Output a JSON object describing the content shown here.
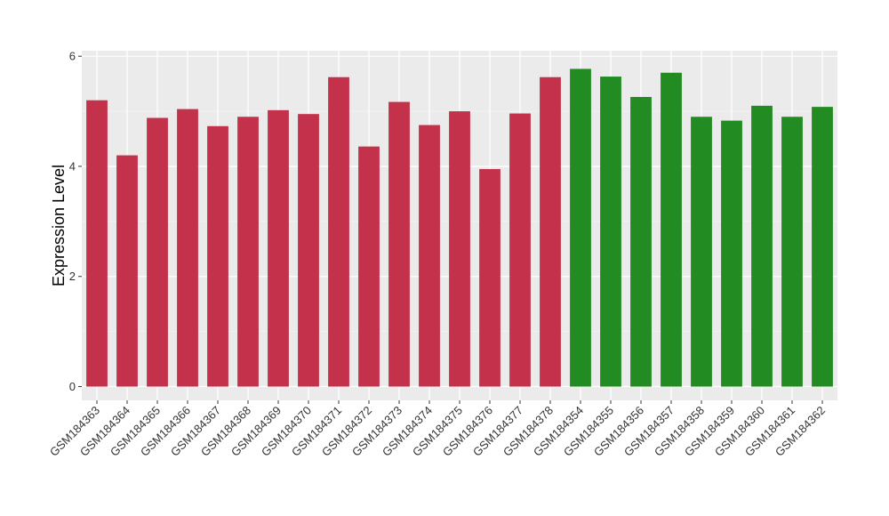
{
  "chart_data": {
    "type": "bar",
    "title": "",
    "xlabel": "",
    "ylabel": "Expression Level",
    "ylim": [
      -0.25,
      6.1
    ],
    "yticks": [
      0,
      2,
      4,
      6
    ],
    "grid": true,
    "legend": "none",
    "panel_background": "#EBEBEB",
    "categories": [
      "GSM184363",
      "GSM184364",
      "GSM184365",
      "GSM184366",
      "GSM184367",
      "GSM184368",
      "GSM184369",
      "GSM184370",
      "GSM184371",
      "GSM184372",
      "GSM184373",
      "GSM184374",
      "GSM184375",
      "GSM184376",
      "GSM184377",
      "GSM184378",
      "GSM184354",
      "GSM184355",
      "GSM184356",
      "GSM184357",
      "GSM184358",
      "GSM184359",
      "GSM184360",
      "GSM184361",
      "GSM184362"
    ],
    "values": [
      5.2,
      4.2,
      4.88,
      5.04,
      4.73,
      4.9,
      5.02,
      4.95,
      5.62,
      4.36,
      5.17,
      4.75,
      5.0,
      3.95,
      4.96,
      5.62,
      5.77,
      5.63,
      5.26,
      5.7,
      4.9,
      4.83,
      5.1,
      4.9,
      5.08
    ],
    "group_colors": [
      "#C3314A",
      "#C3314A",
      "#C3314A",
      "#C3314A",
      "#C3314A",
      "#C3314A",
      "#C3314A",
      "#C3314A",
      "#C3314A",
      "#C3314A",
      "#C3314A",
      "#C3314A",
      "#C3314A",
      "#C3314A",
      "#C3314A",
      "#C3314A",
      "#228B22",
      "#228B22",
      "#228B22",
      "#228B22",
      "#228B22",
      "#228B22",
      "#228B22",
      "#228B22",
      "#228B22"
    ]
  }
}
